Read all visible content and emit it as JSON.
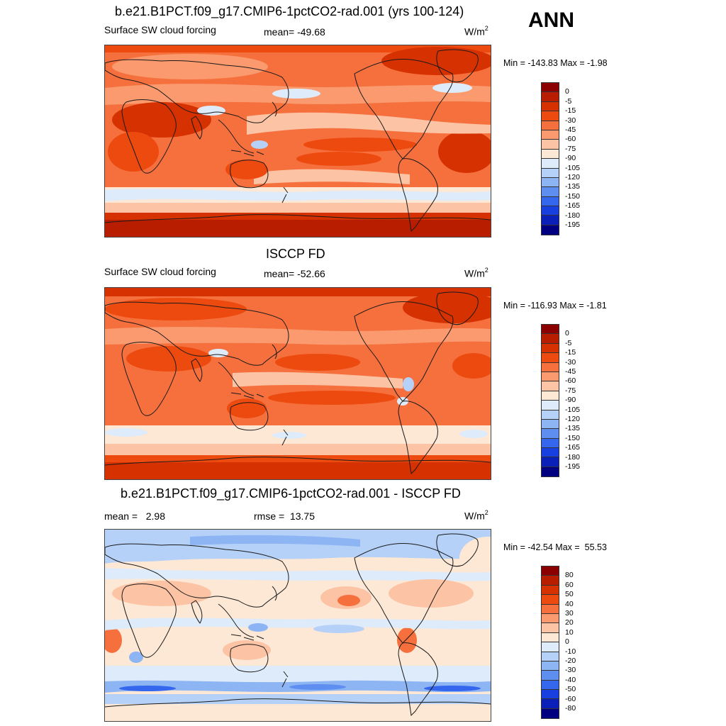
{
  "header": {
    "ann_label": "ANN"
  },
  "panels": [
    {
      "id": "model",
      "title": "b.e21.B1PCT.f09_g17.CMIP6-1pctCO2-rad.001 (yrs 100-124)",
      "left_label": "Surface SW cloud forcing",
      "center_label": "mean= -49.68",
      "units_base": "W/m",
      "units_exp": "2",
      "minmax": "Min = -143.83 Max =  -1.98",
      "colorbar": {
        "colors": [
          "#8b0000",
          "#b81d00",
          "#d63100",
          "#ec4a0f",
          "#f6703e",
          "#fa9a6e",
          "#fcc3a4",
          "#fde8d6",
          "#deebfa",
          "#b6d1f8",
          "#8db4f3",
          "#5f8ef1",
          "#3566ee",
          "#1840e0",
          "#0a20b8",
          "#000080"
        ],
        "labels": [
          "0",
          "-5",
          "-15",
          "-30",
          "-45",
          "-60",
          "-75",
          "-90",
          "-105",
          "-120",
          "-135",
          "-150",
          "-165",
          "-180",
          "-195"
        ]
      }
    },
    {
      "id": "obs",
      "title": "ISCCP FD",
      "left_label": "Surface SW cloud forcing",
      "center_label": "mean= -52.66",
      "units_base": "W/m",
      "units_exp": "2",
      "minmax": "Min = -116.93 Max =  -1.81",
      "colorbar": {
        "colors": [
          "#8b0000",
          "#b81d00",
          "#d63100",
          "#ec4a0f",
          "#f6703e",
          "#fa9a6e",
          "#fcc3a4",
          "#fde8d6",
          "#deebfa",
          "#b6d1f8",
          "#8db4f3",
          "#5f8ef1",
          "#3566ee",
          "#1840e0",
          "#0a20b8",
          "#000080"
        ],
        "labels": [
          "0",
          "-5",
          "-15",
          "-30",
          "-45",
          "-60",
          "-75",
          "-90",
          "-105",
          "-120",
          "-135",
          "-150",
          "-165",
          "-180",
          "-195"
        ]
      }
    },
    {
      "id": "diff",
      "title": "b.e21.B1PCT.f09_g17.CMIP6-1pctCO2-rad.001 - ISCCP FD",
      "left_label": "mean =   2.98",
      "center_label": "rmse =  13.75",
      "units_base": "W/m",
      "units_exp": "2",
      "minmax": "Min = -42.54 Max =  55.53",
      "colorbar": {
        "colors": [
          "#8b0000",
          "#b81d00",
          "#d63100",
          "#ec4a0f",
          "#f6703e",
          "#fa9a6e",
          "#fcc3a4",
          "#fde8d6",
          "#deebfa",
          "#b6d1f8",
          "#8db4f3",
          "#5f8ef1",
          "#3566ee",
          "#1840e0",
          "#0a20b8",
          "#000080"
        ],
        "labels": [
          "80",
          "60",
          "50",
          "40",
          "30",
          "20",
          "10",
          "0",
          "-10",
          "-20",
          "-30",
          "-40",
          "-50",
          "-60",
          "-80"
        ]
      }
    }
  ]
}
